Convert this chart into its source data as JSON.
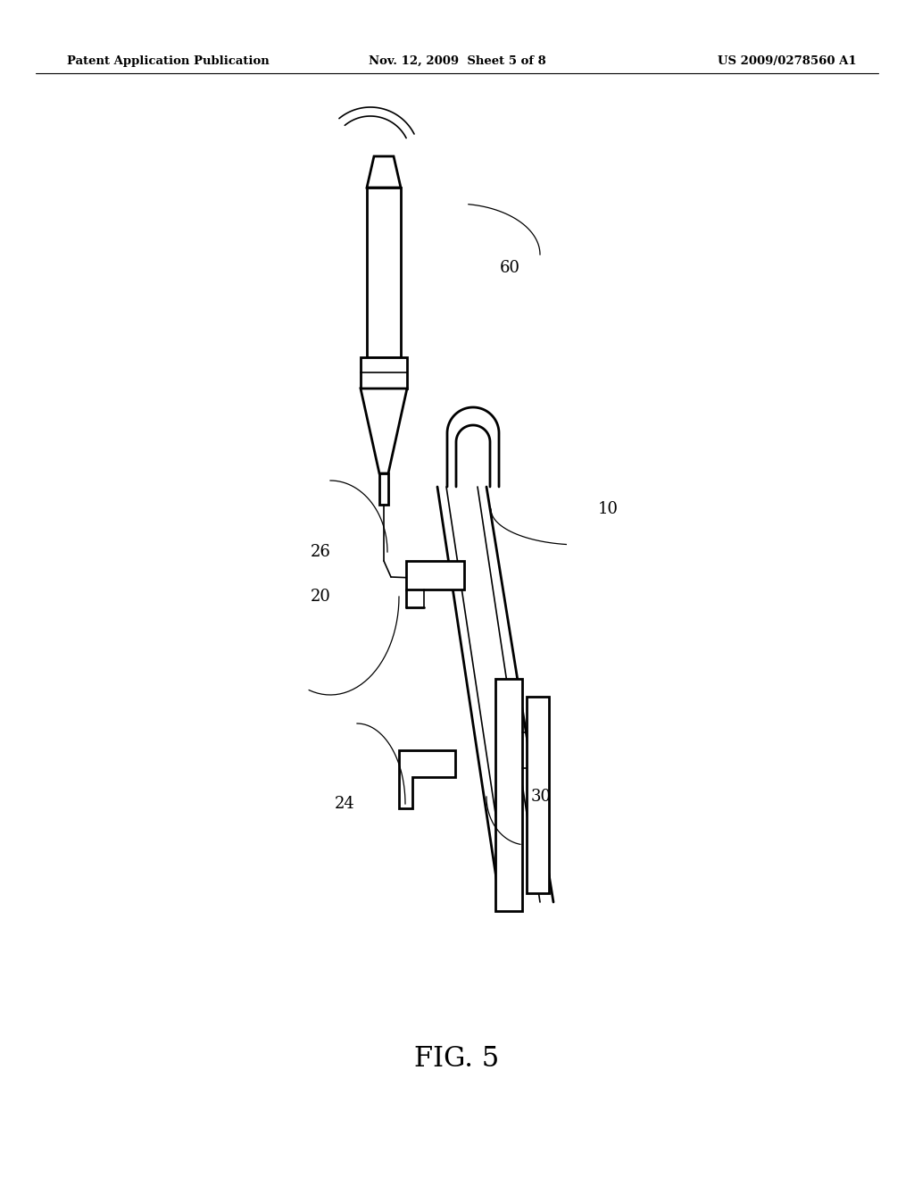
{
  "title": "FIG. 5",
  "header_left": "Patent Application Publication",
  "header_center": "Nov. 12, 2009  Sheet 5 of 8",
  "header_right": "US 2009/0278560 A1",
  "background_color": "#ffffff",
  "line_color": "#000000",
  "label_color": "#000000"
}
